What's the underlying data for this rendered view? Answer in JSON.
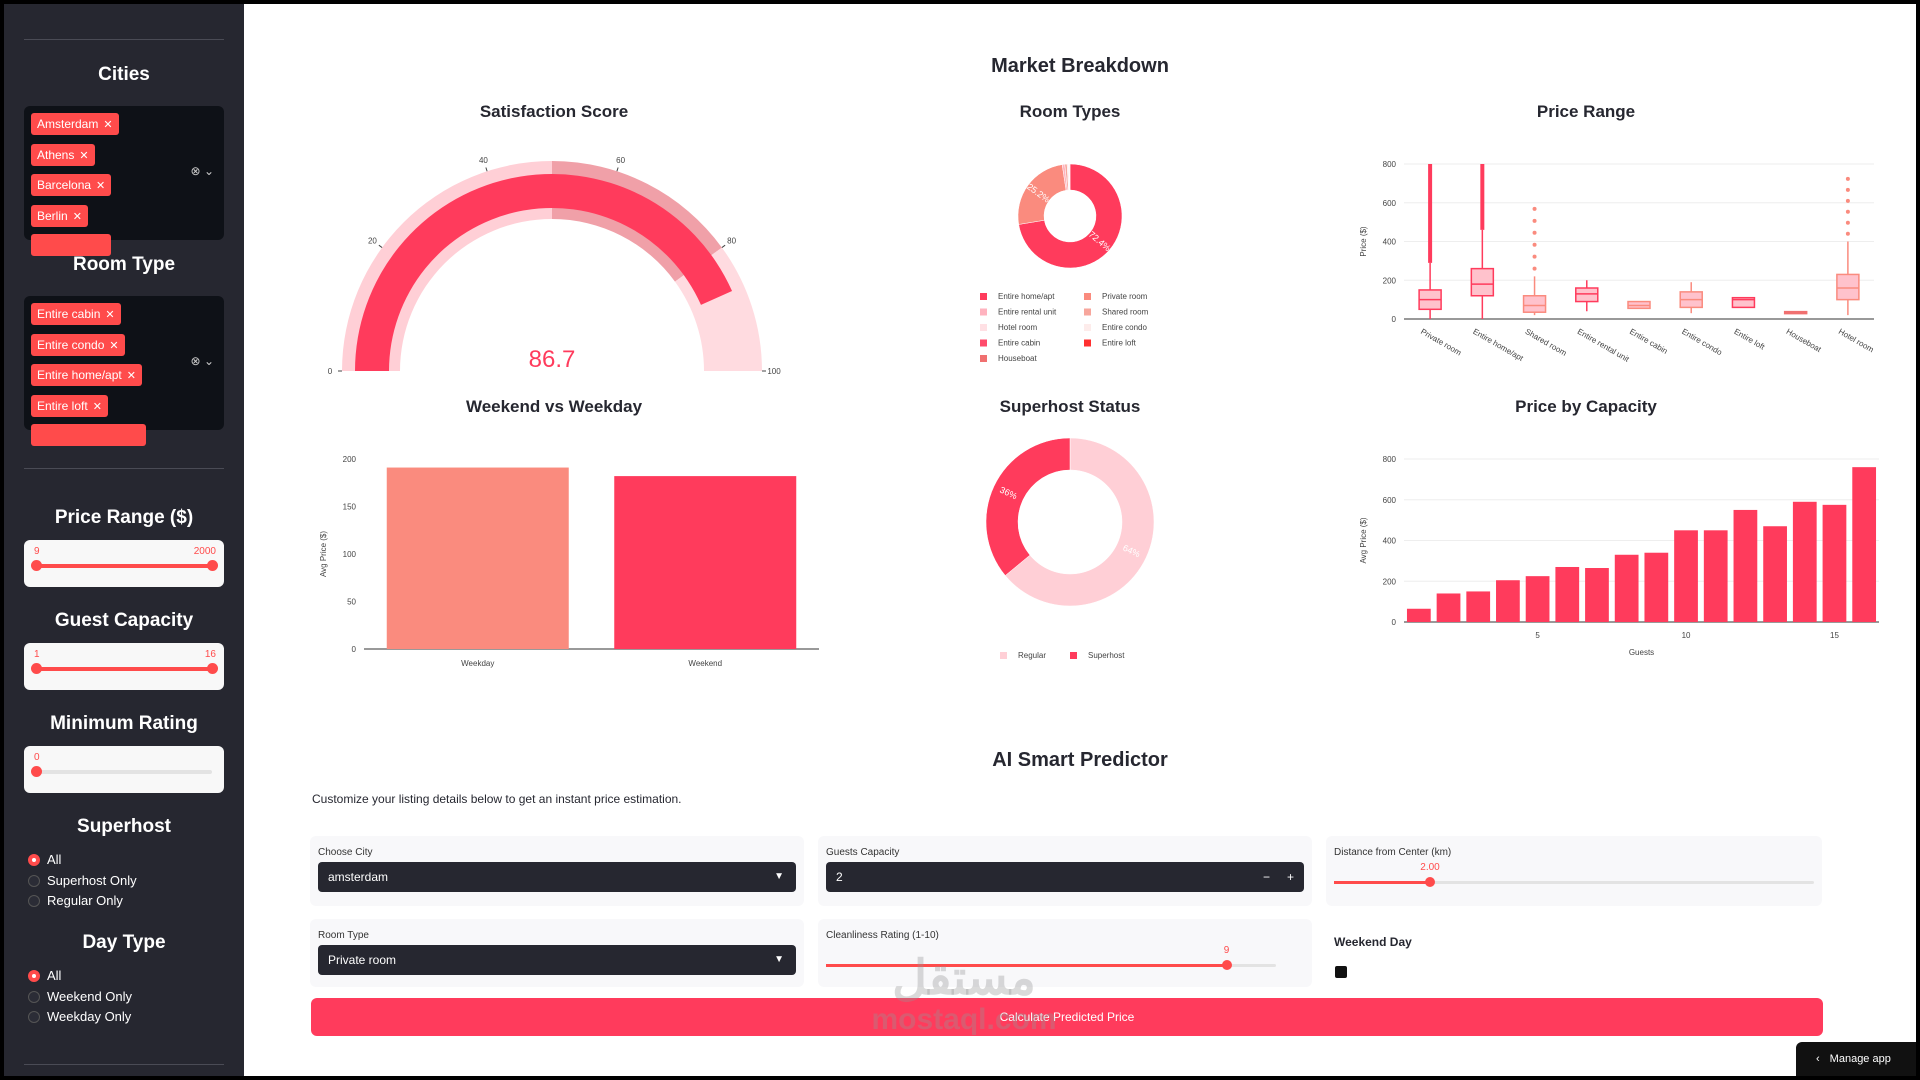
{
  "colors": {
    "accent": "#ff3b5c",
    "light_pink": "#ffcfd6",
    "salmon": "#fa8b7e",
    "sidebar_bg": "#262730"
  },
  "sidebar": {
    "cities": {
      "title": "Cities",
      "chips": [
        "Amsterdam",
        "Athens",
        "Barcelona",
        "Berlin"
      ]
    },
    "room_type": {
      "title": "Room Type",
      "chips": [
        "Entire cabin",
        "Entire condo",
        "Entire home/apt",
        "Entire loft"
      ]
    },
    "price_range": {
      "title": "Price Range ($)",
      "min_label": "9",
      "max_label": "2000",
      "low": 0,
      "high": 1
    },
    "guest_capacity": {
      "title": "Guest Capacity",
      "min_label": "1",
      "max_label": "16",
      "low": 0,
      "high": 1
    },
    "minimum_rating": {
      "title": "Minimum Rating",
      "min_label": "0",
      "value": 0
    },
    "superhost": {
      "title": "Superhost",
      "options": [
        "All",
        "Superhost Only",
        "Regular Only"
      ],
      "selected": 0
    },
    "day_type": {
      "title": "Day Type",
      "options": [
        "All",
        "Weekend Only",
        "Weekday Only"
      ],
      "selected": 0
    }
  },
  "main": {
    "market_title": "Market Breakdown",
    "predictor_title": "AI Smart Predictor",
    "predictor_subtitle": "Customize your listing details below to get an instant price estimation.",
    "form": {
      "city_label": "Choose City",
      "city_value": "amsterdam",
      "guests_label": "Guests Capacity",
      "guests_value": "2",
      "minus": "−",
      "plus": "+",
      "distance_label": "Distance from Center (km)",
      "distance_value": "2.00",
      "distance_fraction": 0.2,
      "room_label": "Room Type",
      "room_value": "Private room",
      "clean_label": "Cleanliness Rating (1-10)",
      "clean_value": "9",
      "clean_fraction": 0.89,
      "weekend_label": "Weekend Day",
      "button": "Calculate Predicted Price"
    },
    "manage_app": "Manage app",
    "watermark_brand": "مستقل",
    "watermark_url": "mostaql.com"
  },
  "chart_data": [
    {
      "id": "satisfaction",
      "type": "gauge",
      "title": "Satisfaction Score",
      "value": 86.7,
      "value_label": "86.7",
      "range": [
        0,
        100
      ],
      "ticks": [
        "0",
        "20",
        "40",
        "60",
        "80",
        "100"
      ],
      "steps": [
        {
          "from": 0,
          "to": 50,
          "color": "#ffcfd6"
        },
        {
          "from": 50,
          "to": 80,
          "color": "#f0a0a8"
        },
        {
          "from": 80,
          "to": 100,
          "color": "#ffdbe0"
        }
      ]
    },
    {
      "id": "room_types",
      "type": "pie",
      "title": "Room Types",
      "hole": 0.5,
      "slices": [
        {
          "label": "Entire home/apt",
          "value": 72.4,
          "color": "#ff3b5c",
          "text": "72.4%"
        },
        {
          "label": "Private room",
          "value": 25.2,
          "color": "#fa8b7e",
          "text": "25.2%"
        },
        {
          "label": "Entire rental unit",
          "value": 0.8,
          "color": "#ffb3bf",
          "text": ""
        },
        {
          "label": "Shared room",
          "value": 0.7,
          "color": "#f7a69c",
          "text": ""
        },
        {
          "label": "Hotel room",
          "value": 0.4,
          "color": "#ffe0e4",
          "text": ""
        },
        {
          "label": "Entire condo",
          "value": 0.2,
          "color": "#fdeceb",
          "text": ""
        },
        {
          "label": "Entire cabin",
          "value": 0.1,
          "color": "#ff4b6b",
          "text": ""
        },
        {
          "label": "Entire loft",
          "value": 0.1,
          "color": "#ff3030",
          "text": ""
        },
        {
          "label": "Houseboat",
          "value": 0.1,
          "color": "#f07070",
          "text": ""
        }
      ]
    },
    {
      "id": "price_range",
      "type": "box",
      "title": "Price Range",
      "ylabel": "Price ($)",
      "ylim": [
        0,
        800
      ],
      "yticks": [
        0,
        200,
        400,
        600,
        800
      ],
      "boxes": [
        {
          "label": "Private room",
          "q1": 50,
          "med": 100,
          "q3": 150,
          "lo": 0,
          "hi": 290,
          "max": 800,
          "dense": true,
          "color": "#ff3b5c"
        },
        {
          "label": "Entire home/apt",
          "q1": 120,
          "med": 180,
          "q3": 260,
          "lo": 0,
          "hi": 460,
          "max": 800,
          "dense": true,
          "color": "#ff3b5c"
        },
        {
          "label": "Shared room",
          "q1": 35,
          "med": 70,
          "q3": 120,
          "lo": 20,
          "hi": 220,
          "max": 590,
          "dense": false,
          "color": "#fa8b7e"
        },
        {
          "label": "Entire rental unit",
          "q1": 90,
          "med": 130,
          "q3": 160,
          "lo": 40,
          "hi": 200,
          "max": 200,
          "dense": false,
          "color": "#ff3b5c"
        },
        {
          "label": "Entire cabin",
          "q1": 55,
          "med": 70,
          "q3": 90,
          "lo": 55,
          "hi": 90,
          "max": 90,
          "dense": false,
          "color": "#fa8b7e"
        },
        {
          "label": "Entire condo",
          "q1": 60,
          "med": 100,
          "q3": 140,
          "lo": 30,
          "hi": 190,
          "max": 190,
          "dense": false,
          "color": "#fa8b7e"
        },
        {
          "label": "Entire loft",
          "q1": 60,
          "med": 100,
          "q3": 110,
          "lo": 60,
          "hi": 110,
          "max": 110,
          "dense": false,
          "color": "#ff3b5c"
        },
        {
          "label": "Houseboat",
          "q1": 35,
          "med": 35,
          "q3": 38,
          "lo": 35,
          "hi": 38,
          "max": 38,
          "dense": false,
          "color": "#f07070"
        },
        {
          "label": "Hotel room",
          "q1": 100,
          "med": 160,
          "q3": 230,
          "lo": 20,
          "hi": 400,
          "max": 740,
          "dense": false,
          "color": "#fa8b7e"
        }
      ]
    },
    {
      "id": "weekend_weekday",
      "type": "bar",
      "title": "Weekend vs Weekday",
      "ylabel": "Avg Price ($)",
      "ylim": [
        0,
        200
      ],
      "yticks": [
        0,
        50,
        100,
        150,
        200
      ],
      "categories": [
        "Weekday",
        "Weekend"
      ],
      "values": [
        191,
        182
      ],
      "colors": [
        "#fa8b7e",
        "#ff3b5c"
      ]
    },
    {
      "id": "superhost",
      "type": "pie",
      "title": "Superhost Status",
      "hole": 0.6,
      "slices": [
        {
          "label": "Regular",
          "value": 64,
          "color": "#ffcfd6",
          "text": "64%"
        },
        {
          "label": "Superhost",
          "value": 36,
          "color": "#ff3b5c",
          "text": "36%"
        }
      ]
    },
    {
      "id": "capacity",
      "type": "bar",
      "title": "Price by Capacity",
      "ylabel": "Avg Price ($)",
      "xlabel": "Guests",
      "ylim": [
        0,
        800
      ],
      "yticks": [
        0,
        200,
        400,
        600,
        800
      ],
      "xticks": [
        5,
        10,
        15
      ],
      "categories": [
        1,
        2,
        3,
        4,
        5,
        6,
        7,
        8,
        9,
        10,
        11,
        12,
        13,
        14,
        15,
        16
      ],
      "values": [
        65,
        140,
        150,
        205,
        225,
        270,
        265,
        330,
        340,
        450,
        450,
        550,
        470,
        590,
        575,
        760
      ],
      "color": "#ff3b5c"
    }
  ]
}
